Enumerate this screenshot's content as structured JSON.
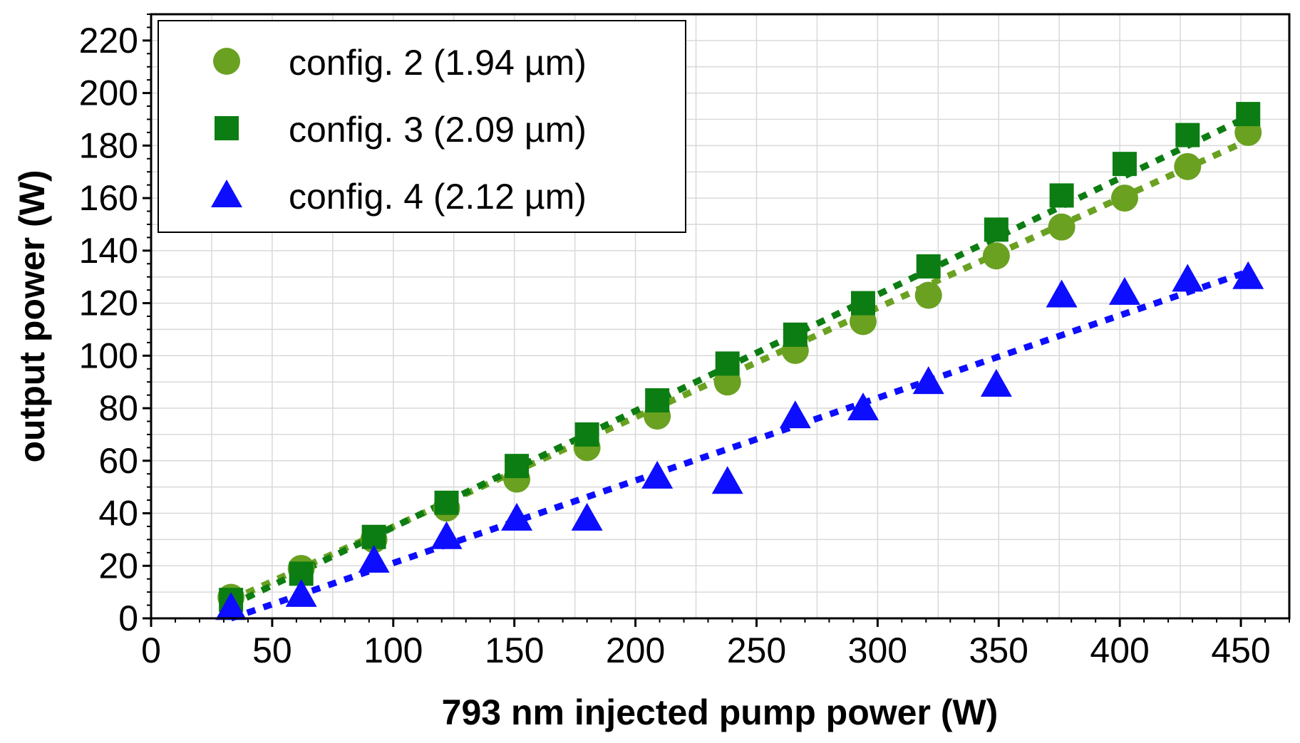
{
  "chart_data": {
    "type": "scatter",
    "title": "",
    "xlabel": "793 nm injected pump power (W)",
    "ylabel": "output power (W)",
    "xlim": [
      0,
      470
    ],
    "ylim": [
      0,
      230
    ],
    "xticks": [
      0,
      50,
      100,
      150,
      200,
      250,
      300,
      350,
      400,
      450
    ],
    "yticks": [
      0,
      20,
      40,
      60,
      80,
      100,
      120,
      140,
      160,
      180,
      200,
      220
    ],
    "grid": true,
    "legend_position": "top-left",
    "series": [
      {
        "name": "config. 2 (1.94 µm)",
        "marker": "circle",
        "color": "#6aa121",
        "x": [
          33,
          62,
          92,
          122,
          151,
          180,
          209,
          238,
          266,
          294,
          321,
          349,
          376,
          402,
          428,
          453
        ],
        "y": [
          8,
          19,
          30,
          42,
          53,
          65,
          77,
          90,
          102,
          113,
          123,
          138,
          149,
          160,
          172,
          185
        ],
        "fit": {
          "x": [
            33,
            453
          ],
          "y": [
            7,
            182
          ]
        }
      },
      {
        "name": "config. 3 (2.09 µm)",
        "marker": "square",
        "color": "#0c7d12",
        "x": [
          33,
          62,
          92,
          122,
          151,
          180,
          209,
          238,
          266,
          294,
          321,
          349,
          376,
          402,
          428,
          453
        ],
        "y": [
          7,
          17,
          31,
          44,
          58,
          70,
          83,
          97,
          108,
          120,
          134,
          148,
          161,
          173,
          184,
          192
        ],
        "fit": {
          "x": [
            33,
            453
          ],
          "y": [
            5,
            191
          ]
        }
      },
      {
        "name": "config. 4 (2.12 µm)",
        "marker": "triangle",
        "color": "#0d0dff",
        "x": [
          33,
          62,
          92,
          122,
          151,
          180,
          209,
          238,
          266,
          294,
          321,
          349,
          376,
          402,
          428,
          453
        ],
        "y": [
          4,
          9,
          22,
          31,
          38,
          38,
          54,
          52,
          77,
          80,
          90,
          89,
          123,
          124,
          129,
          130
        ],
        "fit": {
          "x": [
            33,
            453
          ],
          "y": [
            0,
            132
          ]
        }
      }
    ]
  }
}
